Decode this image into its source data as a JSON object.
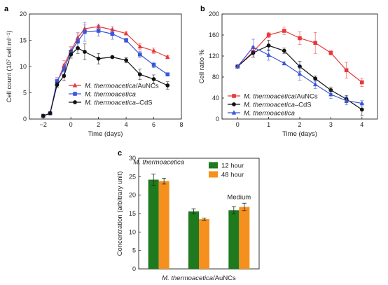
{
  "figure": {
    "panel_labels": [
      "a",
      "b",
      "c"
    ]
  },
  "chart_data": [
    {
      "panel": "a",
      "type": "line",
      "xlabel": "Time (days)",
      "ylabel": "Cell count (10⁷ cell ml⁻¹)",
      "xlim": [
        -3,
        8
      ],
      "ylim": [
        0,
        20
      ],
      "xticks": [
        -2,
        0,
        2,
        4,
        6,
        8
      ],
      "yticks": [
        0,
        5,
        10,
        15,
        20
      ],
      "legend": "center-right",
      "series": [
        {
          "name": "M. thermoacetica/AuNCs",
          "italic": "M. thermoacetica",
          "suffix": "/AuNCs",
          "color": "#e8383a",
          "marker": "triangle",
          "x": [
            -2,
            -1.5,
            -1,
            -0.5,
            0,
            0.5,
            1,
            2,
            3,
            4,
            5,
            6,
            7
          ],
          "y": [
            0.6,
            1.1,
            7.0,
            10.2,
            13.0,
            15.5,
            17.2,
            17.6,
            17.0,
            16.3,
            13.8,
            13.0,
            11.8
          ],
          "err": [
            0.1,
            0.1,
            0.6,
            0.9,
            0.8,
            1.0,
            0.7,
            0.5,
            0.6,
            0.3,
            0.6,
            0.5,
            0.3
          ]
        },
        {
          "name": "M. thermoacetica",
          "italic": "M. thermoacetica",
          "suffix": "",
          "color": "#3a56d9",
          "marker": "square",
          "x": [
            -2,
            -1.5,
            -1,
            -0.5,
            0,
            0.5,
            1,
            2,
            3,
            4,
            5,
            6,
            7
          ],
          "y": [
            0.6,
            1.1,
            7.2,
            9.5,
            12.8,
            14.8,
            16.6,
            16.8,
            16.2,
            15.0,
            12.3,
            10.3,
            8.5
          ],
          "err": [
            0.1,
            0.1,
            0.7,
            1.0,
            0.8,
            1.4,
            1.8,
            1.0,
            1.0,
            0.4,
            0.6,
            0.5,
            0.3
          ]
        },
        {
          "name": "M. thermoacetica–CdS",
          "italic": "M. thermoacetica",
          "suffix": "–CdS",
          "color": "#111111",
          "marker": "circle",
          "x": [
            -2,
            -1.5,
            -1,
            -0.5,
            0,
            0.5,
            1,
            2,
            3,
            4,
            5,
            6,
            7
          ],
          "y": [
            0.6,
            1.1,
            6.5,
            8.2,
            12.3,
            13.5,
            12.8,
            11.5,
            11.8,
            11.2,
            8.5,
            7.6,
            6.4
          ],
          "err": [
            0.1,
            0.1,
            0.5,
            0.9,
            0.7,
            1.0,
            1.5,
            1.0,
            0.2,
            0.5,
            1.0,
            0.8,
            0.7
          ]
        }
      ]
    },
    {
      "panel": "b",
      "type": "line",
      "xlabel": "Time (days)",
      "ylabel": "Cell ratio %",
      "xlim": [
        -0.5,
        4.5
      ],
      "ylim": [
        0,
        200
      ],
      "xticks": [
        0,
        1,
        2,
        3,
        4
      ],
      "yticks": [
        0,
        40,
        80,
        120,
        160,
        200
      ],
      "legend": "bottom-left",
      "series": [
        {
          "name": "M. thermoacetica/AuNCs",
          "italic": "M. thermoacetica",
          "suffix": "/AuNCs",
          "color": "#e8383a",
          "marker": "square",
          "x": [
            0,
            0.5,
            1,
            1.5,
            2,
            2.5,
            3,
            3.5,
            4
          ],
          "y": [
            100,
            128,
            160,
            168,
            154,
            145,
            126,
            93,
            70
          ],
          "err": [
            0,
            10,
            5,
            7,
            12,
            20,
            4,
            15,
            8
          ]
        },
        {
          "name": "M. thermoacetica–CdS",
          "italic": "M. thermoacetica",
          "suffix": "–CdS",
          "color": "#111111",
          "marker": "circle",
          "x": [
            0,
            0.5,
            1,
            1.5,
            2,
            2.5,
            3,
            3.5,
            4
          ],
          "y": [
            100,
            126,
            140,
            130,
            100,
            77,
            55,
            38,
            18
          ],
          "err": [
            0,
            8,
            10,
            5,
            10,
            5,
            6,
            7,
            12
          ]
        },
        {
          "name": "M. thermoacetica",
          "italic": "M. thermoacetica",
          "suffix": "",
          "color": "#3a56d9",
          "marker": "triangle",
          "x": [
            0,
            0.5,
            1,
            1.5,
            2,
            2.5,
            3,
            3.5,
            4
          ],
          "y": [
            100,
            137,
            122,
            106,
            86,
            66,
            47,
            35,
            30
          ],
          "err": [
            0,
            15,
            10,
            3,
            12,
            8,
            8,
            8,
            5
          ]
        }
      ]
    },
    {
      "panel": "c",
      "type": "bar",
      "ylabel": "Concentration (arbitrary unit)",
      "xlabel_italic": "M. thermoacetica",
      "xlabel_suffix": "/AuNCs",
      "ylim": [
        0,
        30
      ],
      "yticks": [
        0,
        5,
        10,
        15,
        20,
        25,
        30
      ],
      "group_labels": [
        {
          "text": "M. thermoacetica",
          "italic": true
        },
        {
          "text": "",
          "italic": false
        },
        {
          "text": "Medium",
          "italic": false
        }
      ],
      "legend": "top-right",
      "series": [
        {
          "name": "12 hour",
          "color": "#1f7a1f",
          "values": [
            24.2,
            15.6,
            15.9
          ],
          "err": [
            1.5,
            0.7,
            1.0
          ]
        },
        {
          "name": "48 hour",
          "color": "#f5901e",
          "values": [
            23.8,
            13.5,
            16.8
          ],
          "err": [
            0.8,
            0.3,
            1.0
          ]
        }
      ]
    }
  ]
}
